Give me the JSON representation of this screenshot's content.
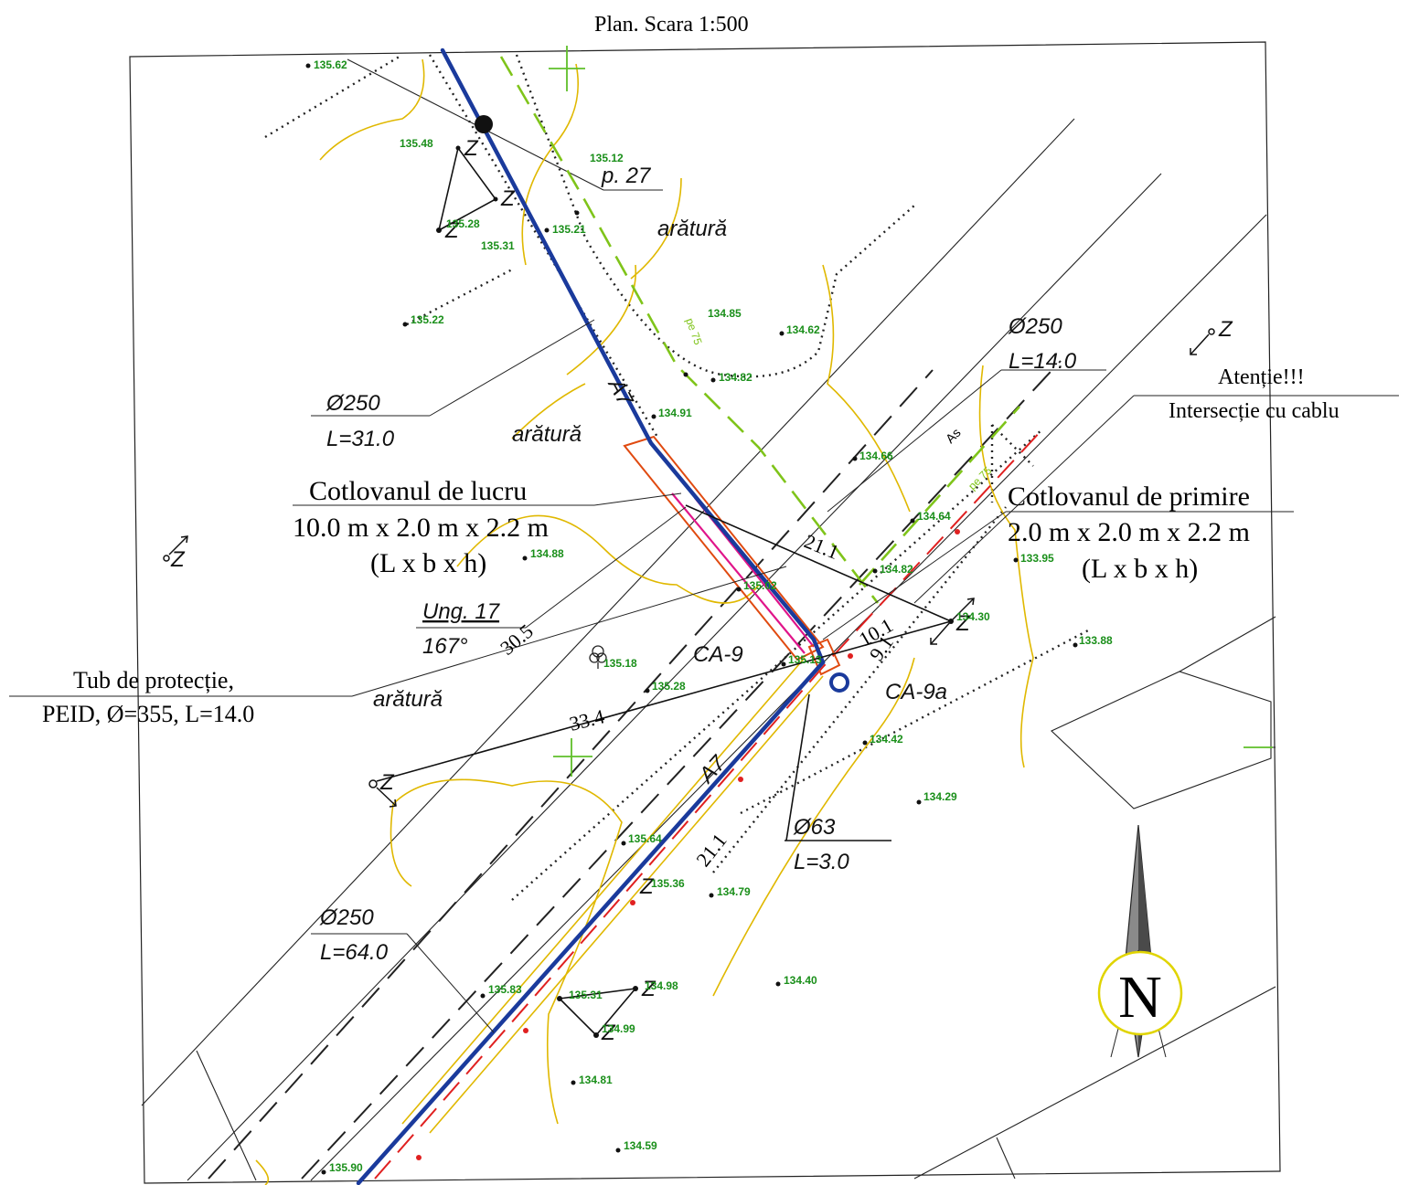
{
  "title": "Plan. Scara 1:500",
  "labels": {
    "p27": "p. 27",
    "aratura": "arătură",
    "d250": "Ø250",
    "l31": "L=31.0",
    "l14": "L=14.0",
    "l64": "L=64.0",
    "d63": "Ø63",
    "l3": "L=3.0",
    "ung_name": "Ung. 17",
    "ung_value": "167°",
    "ca9": "CA-9",
    "ca9a": "CA-9a",
    "a7": "A7",
    "as": "As",
    "pe75": "pe 75",
    "z": "Z",
    "dim_305": "30.5",
    "dim_334": "33.4",
    "dim_211": "21.1",
    "dim_101": "10.1",
    "dim_91": "9.1"
  },
  "annotations": {
    "lucru_title": "Cotlovanul de lucru",
    "lucru_dims": "10.0 m x 2.0 m x 2.2 m",
    "lucru_abbr": "(L x b x h)",
    "primire_title": "Cotlovanul de primire",
    "primire_dims": "2.0 m x 2.0 m x 2.2 m",
    "primire_abbr": "(L x b x h)",
    "atentie_1": "Atenție!!!",
    "atentie_2": "Intersecție cu cablu",
    "tub_1": "Tub de protecție,",
    "tub_2": "PEID, Ø=355, L=14.0"
  },
  "north": "N",
  "elevations": {
    "e13562": "135.62",
    "e13548": "135.48",
    "e13512": "135.12",
    "e13521": "135.21",
    "e13528a": "135.28",
    "e13531": "135.31",
    "e13522": "135.22",
    "e13485": "134.85",
    "e13462": "134.62",
    "e13482a": "134.82",
    "e13491": "134.91",
    "e13466": "134.66",
    "e13464": "134.64",
    "e13482b": "134.82",
    "e13395": "133.95",
    "e13488": "134.88",
    "e13502": "135.02",
    "e13430": "134.30",
    "e13388": "133.88",
    "e13518": "135.18",
    "e13513": "135.13",
    "e13528b": "135.28",
    "e13442": "134.42",
    "e13429": "134.29",
    "e13564": "135.64",
    "e13536": "135.36",
    "e13479": "134.79",
    "e13440": "134.40",
    "e13583": "135.83",
    "e13531b": "135.31",
    "e13498": "134.98",
    "e13499": "134.99",
    "e13481": "134.81",
    "e13459": "134.59",
    "e13590": "135.90"
  }
}
